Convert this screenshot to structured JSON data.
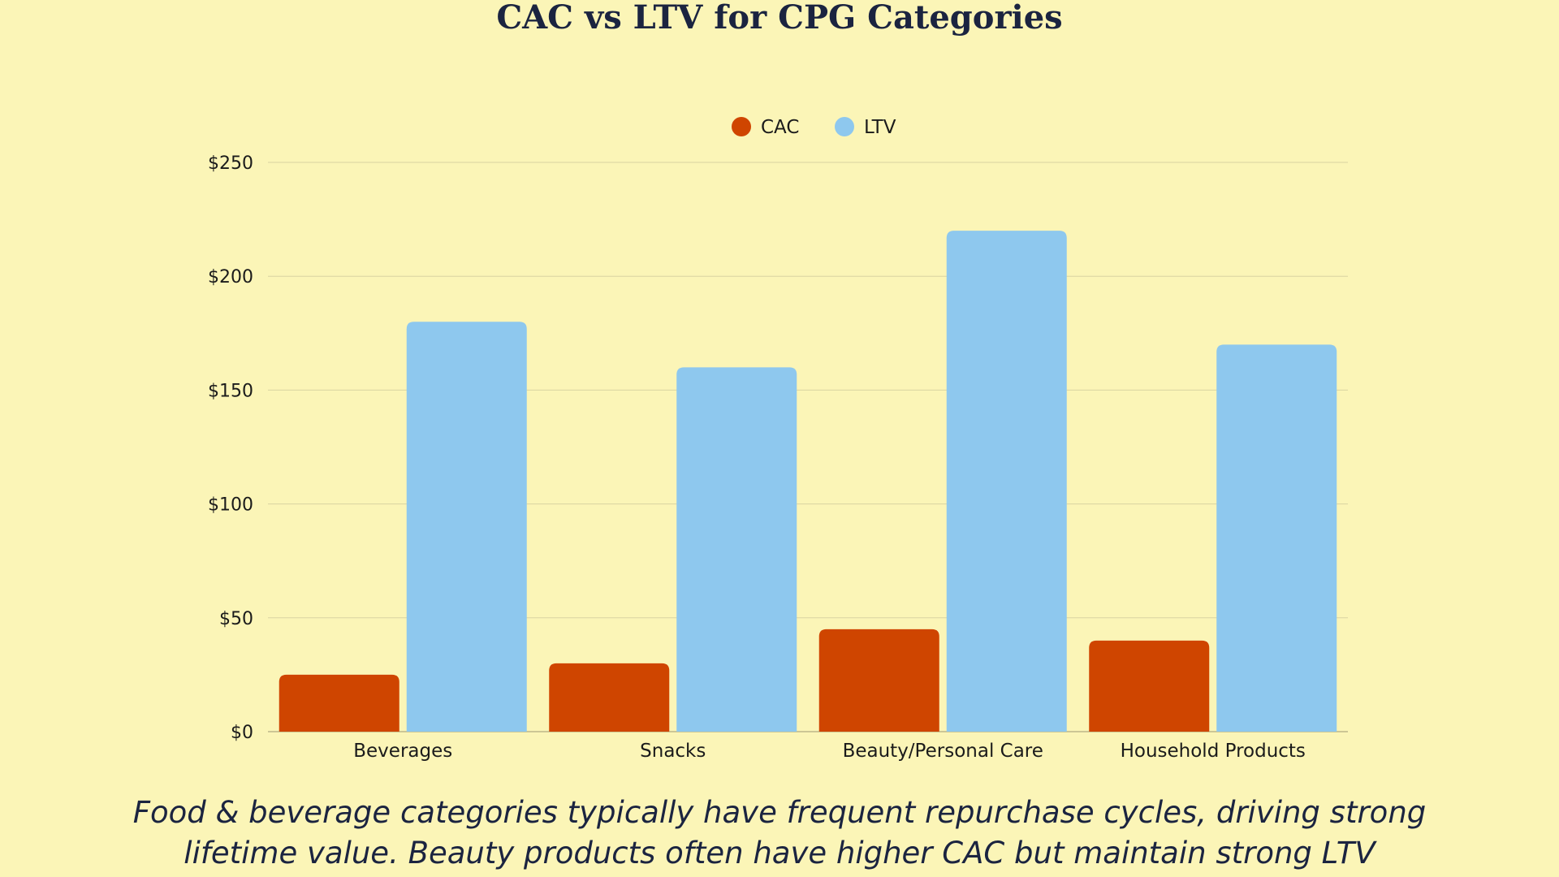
{
  "chart_data": {
    "type": "bar",
    "title": "CAC vs LTV for CPG Categories",
    "xlabel": "",
    "ylabel": "",
    "categories": [
      "Beverages",
      "Snacks",
      "Beauty/Personal Care",
      "Household Products"
    ],
    "series": [
      {
        "name": "CAC",
        "color": "#CF4500",
        "values": [
          25,
          30,
          45,
          40
        ]
      },
      {
        "name": "LTV",
        "color": "#8EC8EE",
        "values": [
          180,
          160,
          220,
          170
        ]
      }
    ],
    "ylim": [
      0,
      250
    ],
    "yticks": [
      0,
      50,
      100,
      150,
      200,
      250
    ],
    "ytick_labels": [
      "$0",
      "$50",
      "$100",
      "$150",
      "$200",
      "$250"
    ],
    "grid": true,
    "legend_position": "top-center",
    "caption": "Food & beverage categories typically have frequent repurchase cycles, driving strong lifetime value. Beauty products often have higher CAC but maintain strong LTV through brand loyalty."
  }
}
